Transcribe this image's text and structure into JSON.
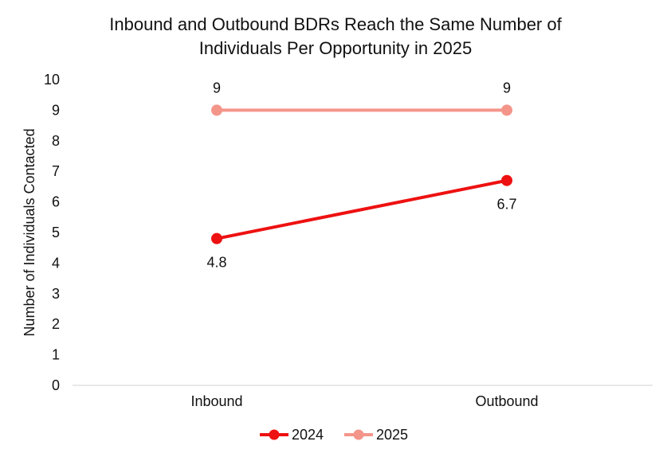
{
  "chart_data": {
    "type": "line",
    "title_lines": [
      "Inbound and Outbound BDRs Reach the Same Number of",
      "Individuals Per Opportunity in 2025"
    ],
    "xlabel": "",
    "ylabel": "Number of Individuals Contacted",
    "categories": [
      "Inbound",
      "Outbound"
    ],
    "ylim": [
      0,
      10
    ],
    "yticks": [
      "0",
      "1",
      "2",
      "3",
      "4",
      "5",
      "6",
      "7",
      "8",
      "9",
      "10"
    ],
    "grid": false,
    "legend_position": "bottom",
    "series": [
      {
        "name": "2024",
        "values": [
          4.8,
          6.7
        ],
        "labels": [
          "4.8",
          "6.7"
        ],
        "label_position": "below",
        "color": "#ee1111"
      },
      {
        "name": "2025",
        "values": [
          9,
          9
        ],
        "labels": [
          "9",
          "9"
        ],
        "label_position": "above",
        "color": "#f4958a"
      }
    ]
  }
}
